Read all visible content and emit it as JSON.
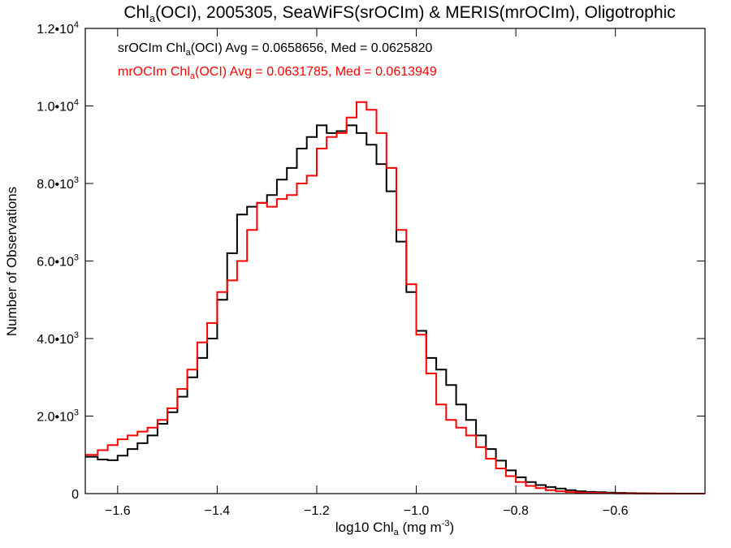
{
  "chart_data": {
    "type": "line",
    "title": {
      "pre": "Chl",
      "sub": "a",
      "post": "(OCI), 2005305, SeaWiFS(srOCIm) & MERIS(mrOCIm), Oligotrophic"
    },
    "xlabel": {
      "pre": "log10 Chl",
      "sub": "a",
      "mid": " (mg m",
      "sup": "-3",
      "post": ")"
    },
    "ylabel": "Number of Observations",
    "xlim": [
      -1.665,
      -0.42
    ],
    "ylim": [
      0,
      12000
    ],
    "x_ticks": [
      {
        "value": -1.6,
        "label": "−1.6"
      },
      {
        "value": -1.4,
        "label": "−1.4"
      },
      {
        "value": -1.2,
        "label": "−1.2"
      },
      {
        "value": -1.0,
        "label": "−1.0"
      },
      {
        "value": -0.8,
        "label": "−0.8"
      },
      {
        "value": -0.6,
        "label": "−0.6"
      }
    ],
    "y_ticks": [
      {
        "value": 0,
        "mant": "0",
        "exp": ""
      },
      {
        "value": 2000,
        "mant": "2.0•10",
        "exp": "3"
      },
      {
        "value": 4000,
        "mant": "4.0•10",
        "exp": "3"
      },
      {
        "value": 6000,
        "mant": "6.0•10",
        "exp": "3"
      },
      {
        "value": 8000,
        "mant": "8.0•10",
        "exp": "3"
      },
      {
        "value": 10000,
        "mant": "1.0•10",
        "exp": "4"
      },
      {
        "value": 12000,
        "mant": "1.2•10",
        "exp": "4"
      }
    ],
    "grid": false,
    "legend_position": "top-left",
    "series": [
      {
        "name": "srOCIm",
        "color": "#000000",
        "legend": {
          "pre": "srOCIm Chl",
          "sub": "a",
          "post": "(OCI) Avg = 0.0658656, Med = 0.0625820"
        },
        "points": [
          [
            -1.665,
            950
          ],
          [
            -1.64,
            880
          ],
          [
            -1.62,
            860
          ],
          [
            -1.6,
            980
          ],
          [
            -1.58,
            1150
          ],
          [
            -1.56,
            1300
          ],
          [
            -1.54,
            1500
          ],
          [
            -1.52,
            1800
          ],
          [
            -1.5,
            2100
          ],
          [
            -1.48,
            2500
          ],
          [
            -1.46,
            3000
          ],
          [
            -1.44,
            3500
          ],
          [
            -1.42,
            4000
          ],
          [
            -1.4,
            5000
          ],
          [
            -1.38,
            6200
          ],
          [
            -1.36,
            7200
          ],
          [
            -1.34,
            7400
          ],
          [
            -1.32,
            7500
          ],
          [
            -1.3,
            7700
          ],
          [
            -1.28,
            8100
          ],
          [
            -1.26,
            8400
          ],
          [
            -1.24,
            8900
          ],
          [
            -1.22,
            9200
          ],
          [
            -1.2,
            9500
          ],
          [
            -1.18,
            9300
          ],
          [
            -1.16,
            9350
          ],
          [
            -1.14,
            9500
          ],
          [
            -1.12,
            9300
          ],
          [
            -1.1,
            9000
          ],
          [
            -1.08,
            8500
          ],
          [
            -1.06,
            7800
          ],
          [
            -1.04,
            6500
          ],
          [
            -1.02,
            5200
          ],
          [
            -1.0,
            4200
          ],
          [
            -0.98,
            3500
          ],
          [
            -0.96,
            3200
          ],
          [
            -0.94,
            2800
          ],
          [
            -0.92,
            2300
          ],
          [
            -0.9,
            1900
          ],
          [
            -0.88,
            1500
          ],
          [
            -0.86,
            1150
          ],
          [
            -0.84,
            850
          ],
          [
            -0.82,
            600
          ],
          [
            -0.8,
            420
          ],
          [
            -0.78,
            300
          ],
          [
            -0.76,
            220
          ],
          [
            -0.74,
            170
          ],
          [
            -0.72,
            130
          ],
          [
            -0.7,
            90
          ],
          [
            -0.68,
            60
          ],
          [
            -0.66,
            45
          ],
          [
            -0.64,
            35
          ],
          [
            -0.62,
            25
          ],
          [
            -0.6,
            18
          ],
          [
            -0.58,
            12
          ],
          [
            -0.56,
            8
          ],
          [
            -0.54,
            5
          ],
          [
            -0.52,
            3
          ],
          [
            -0.5,
            2
          ],
          [
            -0.48,
            1
          ],
          [
            -0.42,
            0
          ]
        ]
      },
      {
        "name": "mrOCIm",
        "color": "#ff0000",
        "legend": {
          "pre": "mrOCIm Chl",
          "sub": "a",
          "post": "(OCI) Avg = 0.0631785, Med = 0.0613949"
        },
        "points": [
          [
            -1.665,
            1000
          ],
          [
            -1.64,
            1120
          ],
          [
            -1.62,
            1250
          ],
          [
            -1.6,
            1400
          ],
          [
            -1.58,
            1500
          ],
          [
            -1.56,
            1600
          ],
          [
            -1.54,
            1700
          ],
          [
            -1.52,
            1900
          ],
          [
            -1.5,
            2200
          ],
          [
            -1.48,
            2700
          ],
          [
            -1.46,
            3200
          ],
          [
            -1.44,
            3900
          ],
          [
            -1.42,
            4400
          ],
          [
            -1.4,
            5200
          ],
          [
            -1.38,
            5500
          ],
          [
            -1.36,
            6000
          ],
          [
            -1.34,
            6800
          ],
          [
            -1.32,
            7500
          ],
          [
            -1.3,
            7400
          ],
          [
            -1.28,
            7600
          ],
          [
            -1.26,
            7700
          ],
          [
            -1.24,
            8000
          ],
          [
            -1.22,
            8200
          ],
          [
            -1.2,
            8900
          ],
          [
            -1.18,
            9200
          ],
          [
            -1.16,
            9300
          ],
          [
            -1.14,
            9700
          ],
          [
            -1.12,
            10100
          ],
          [
            -1.1,
            9900
          ],
          [
            -1.08,
            9300
          ],
          [
            -1.06,
            8400
          ],
          [
            -1.04,
            6800
          ],
          [
            -1.02,
            5400
          ],
          [
            -1.0,
            4100
          ],
          [
            -0.98,
            3100
          ],
          [
            -0.96,
            2300
          ],
          [
            -0.94,
            1900
          ],
          [
            -0.92,
            1700
          ],
          [
            -0.9,
            1500
          ],
          [
            -0.88,
            1200
          ],
          [
            -0.86,
            900
          ],
          [
            -0.84,
            650
          ],
          [
            -0.82,
            450
          ],
          [
            -0.8,
            300
          ],
          [
            -0.78,
            200
          ],
          [
            -0.76,
            140
          ],
          [
            -0.74,
            90
          ],
          [
            -0.72,
            60
          ],
          [
            -0.7,
            40
          ],
          [
            -0.68,
            30
          ],
          [
            -0.66,
            20
          ],
          [
            -0.64,
            14
          ],
          [
            -0.62,
            10
          ],
          [
            -0.6,
            7
          ],
          [
            -0.58,
            5
          ],
          [
            -0.56,
            3
          ],
          [
            -0.54,
            2
          ],
          [
            -0.52,
            1
          ],
          [
            -0.42,
            0
          ]
        ]
      }
    ]
  }
}
